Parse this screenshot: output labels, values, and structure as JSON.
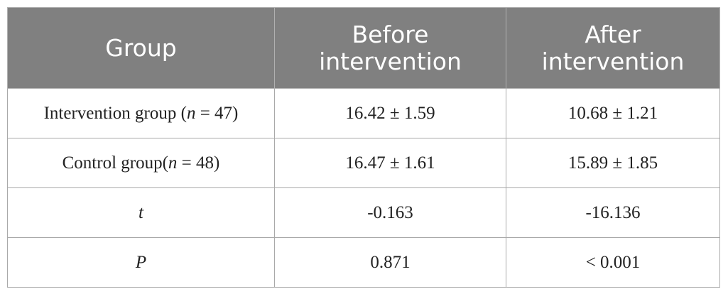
{
  "table": {
    "headers": [
      "Group",
      "Before intervention",
      "After intervention"
    ],
    "rows": [
      {
        "group_prefix": "Intervention group (",
        "group_var": "n",
        "group_suffix": " = 47)",
        "before": "16.42 ± 1.59",
        "after": "10.68 ± 1.21"
      },
      {
        "group_prefix": "Control group(",
        "group_var": "n",
        "group_suffix": " = 48)",
        "before": "16.47 ± 1.61",
        "after": "15.89 ± 1.85"
      },
      {
        "group_prefix": "",
        "group_var": "t",
        "group_suffix": "",
        "before": "-0.163",
        "after": "-16.136"
      },
      {
        "group_prefix": "",
        "group_var": "P",
        "group_suffix": "",
        "before": "0.871",
        "after": "< 0.001"
      }
    ]
  }
}
